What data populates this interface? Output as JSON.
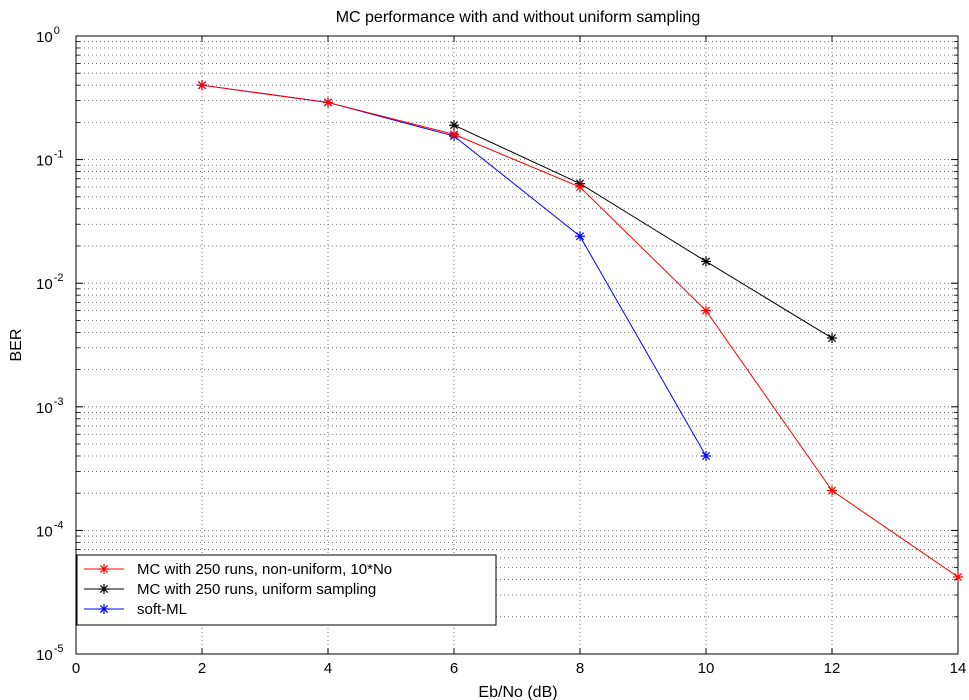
{
  "chart_data": {
    "type": "line",
    "title": "MC performance with and without uniform sampling",
    "xlabel": "Eb/No (dB)",
    "ylabel": "BER",
    "xlim": [
      0,
      14
    ],
    "ylim": [
      1e-05,
      1
    ],
    "yscale": "log",
    "grid": true,
    "legend_position": "bottom-left",
    "x_ticks": [
      "0",
      "2",
      "4",
      "6",
      "8",
      "10",
      "12",
      "14"
    ],
    "y_ticks": [
      {
        "base": "10",
        "exp": "0"
      },
      {
        "base": "10",
        "exp": "-1"
      },
      {
        "base": "10",
        "exp": "-2"
      },
      {
        "base": "10",
        "exp": "-3"
      },
      {
        "base": "10",
        "exp": "-4"
      },
      {
        "base": "10",
        "exp": "-5"
      }
    ],
    "series": [
      {
        "name": "MC with 250 runs, non-uniform, 10*No",
        "color": "#ff0000",
        "x": [
          2,
          4,
          6,
          8,
          10,
          12,
          14
        ],
        "y": [
          0.4,
          0.29,
          0.16,
          0.06,
          0.006,
          0.00021,
          4.2e-05
        ]
      },
      {
        "name": "MC with 250 runs, uniform sampling",
        "color": "#000000",
        "x": [
          6,
          8,
          10,
          12
        ],
        "y": [
          0.19,
          0.064,
          0.015,
          0.0036
        ]
      },
      {
        "name": "soft-ML",
        "color": "#0000ff",
        "x": [
          2,
          4,
          6,
          8,
          10
        ],
        "y": [
          0.4,
          0.29,
          0.155,
          0.024,
          0.0004
        ]
      }
    ]
  }
}
